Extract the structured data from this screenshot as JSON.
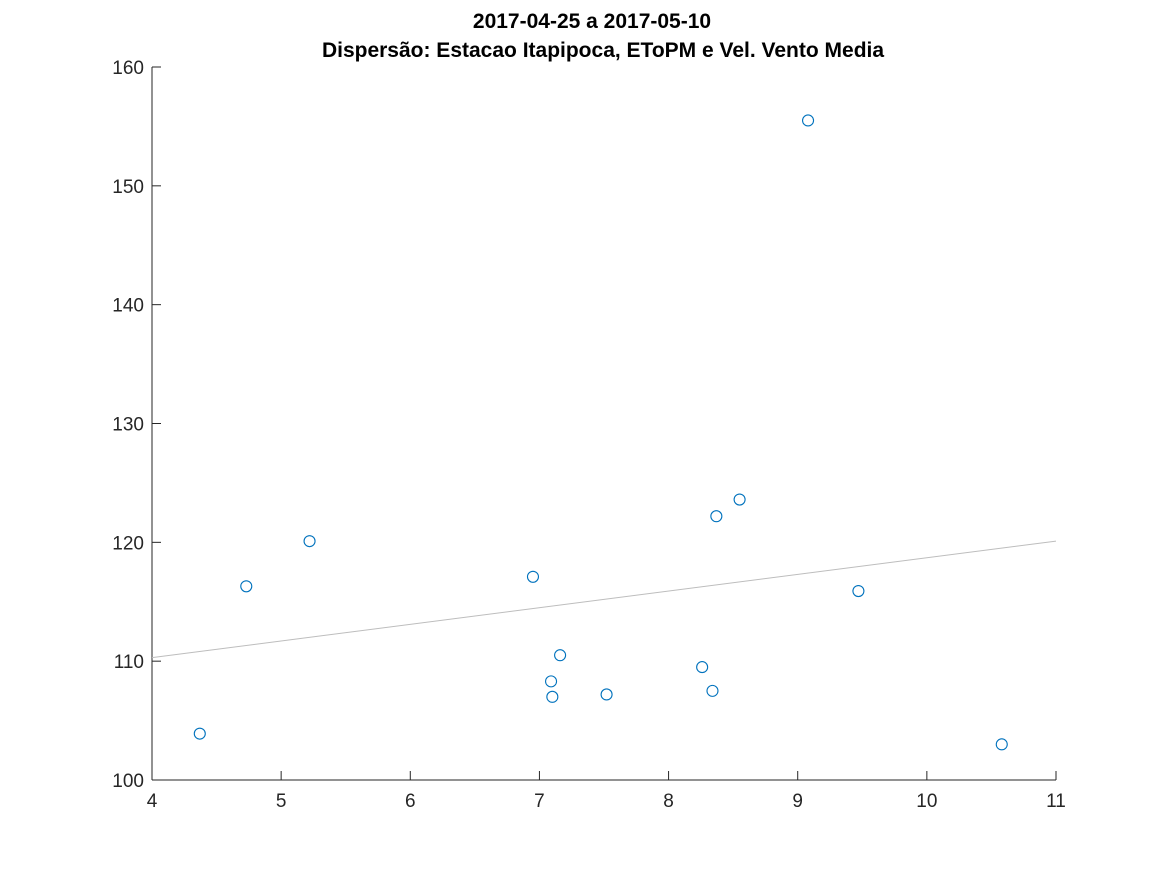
{
  "chart_data": {
    "type": "scatter",
    "title": "2017-04-25 a 2017-05-10",
    "subtitle": "Dispersão: Estacao Itapipoca, EToPM e Vel. Vento Media",
    "xlabel": "",
    "ylabel": "",
    "xlim": [
      4,
      11
    ],
    "ylim": [
      100,
      160
    ],
    "xticks": [
      4,
      5,
      6,
      7,
      8,
      9,
      10,
      11
    ],
    "yticks": [
      100,
      110,
      120,
      130,
      140,
      150,
      160
    ],
    "grid": false,
    "marker_color": "#0072BD",
    "trend_color": "#bdbdbd",
    "points": [
      {
        "x": 4.37,
        "y": 103.9
      },
      {
        "x": 4.73,
        "y": 116.3
      },
      {
        "x": 5.22,
        "y": 120.1
      },
      {
        "x": 6.95,
        "y": 117.1
      },
      {
        "x": 7.09,
        "y": 108.3
      },
      {
        "x": 7.1,
        "y": 107.0
      },
      {
        "x": 7.16,
        "y": 110.5
      },
      {
        "x": 7.52,
        "y": 107.2
      },
      {
        "x": 8.26,
        "y": 109.5
      },
      {
        "x": 8.34,
        "y": 107.5
      },
      {
        "x": 8.37,
        "y": 122.2
      },
      {
        "x": 8.55,
        "y": 123.6
      },
      {
        "x": 9.08,
        "y": 155.5
      },
      {
        "x": 9.47,
        "y": 115.9
      },
      {
        "x": 10.58,
        "y": 103.0
      }
    ],
    "trendline": {
      "x": [
        4,
        11
      ],
      "y": [
        110.3,
        120.1
      ]
    }
  }
}
